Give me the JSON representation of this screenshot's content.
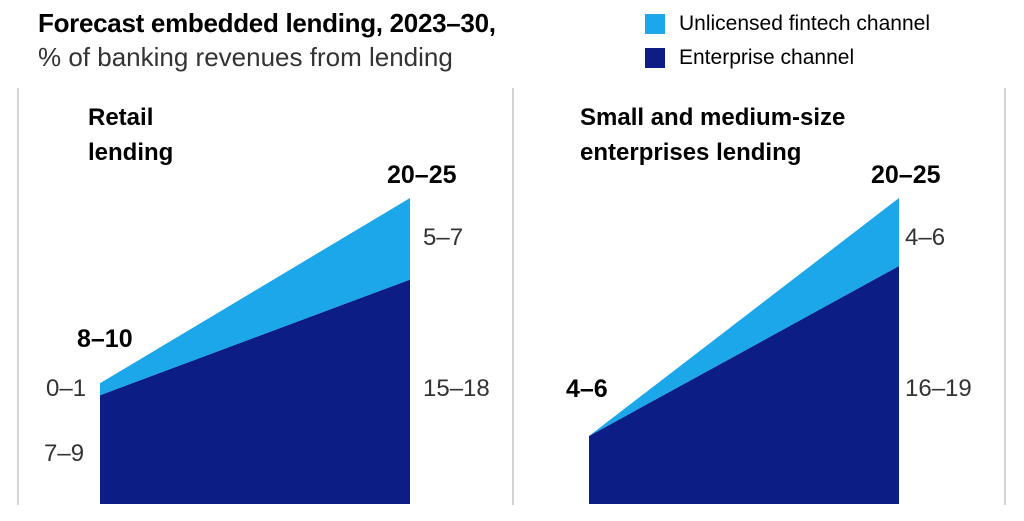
{
  "header": {
    "title": "Forecast embedded lending, 2023–30,",
    "subtitle": "% of banking revenues from lending"
  },
  "legend": {
    "items": [
      {
        "name": "unlicensed-fintech-channel",
        "label": "Unlicensed fintech channel",
        "color": "#1ca7ea"
      },
      {
        "name": "enterprise-channel",
        "label": "Enterprise channel",
        "color": "#0c1e86"
      }
    ]
  },
  "chart_data": [
    {
      "type": "area",
      "subtype": "stacked-range-area",
      "title": "Retail\nlending",
      "x": [
        "2023",
        "2030"
      ],
      "units": "% of banking revenues from lending",
      "series": [
        {
          "name": "Enterprise channel",
          "values_range": {
            "start": [
              7,
              9
            ],
            "end": [
              15,
              18
            ]
          }
        },
        {
          "name": "Unlicensed fintech channel",
          "values_range": {
            "start": [
              0,
              1
            ],
            "end": [
              5,
              7
            ]
          }
        }
      ],
      "totals_range": {
        "start": [
          8,
          10
        ],
        "end": [
          20,
          25
        ]
      },
      "labels": {
        "start_total": "8–10",
        "start_fintech": "0–1",
        "start_enterprise": "7–9",
        "end_total": "20–25",
        "end_fintech": "5–7",
        "end_enterprise": "15–18"
      },
      "ylim": [
        0,
        25
      ],
      "grid": false,
      "legend_position": "top-right"
    },
    {
      "type": "area",
      "subtype": "stacked-range-area",
      "title": "Small and medium-size\nenterprises lending",
      "x": [
        "2023",
        "2030"
      ],
      "units": "% of banking revenues from lending",
      "series": [
        {
          "name": "Enterprise channel",
          "values_range": {
            "start": [
              4,
              6
            ],
            "end": [
              16,
              19
            ]
          }
        },
        {
          "name": "Unlicensed fintech channel",
          "values_range": {
            "start": [
              0,
              0
            ],
            "end": [
              4,
              6
            ]
          }
        }
      ],
      "totals_range": {
        "start": [
          4,
          6
        ],
        "end": [
          20,
          25
        ]
      },
      "labels": {
        "start_total": "4–6",
        "end_total": "20–25",
        "end_fintech": "4–6",
        "end_enterprise": "16–19"
      },
      "ylim": [
        0,
        25
      ],
      "grid": false,
      "legend_position": "top-right"
    }
  ]
}
